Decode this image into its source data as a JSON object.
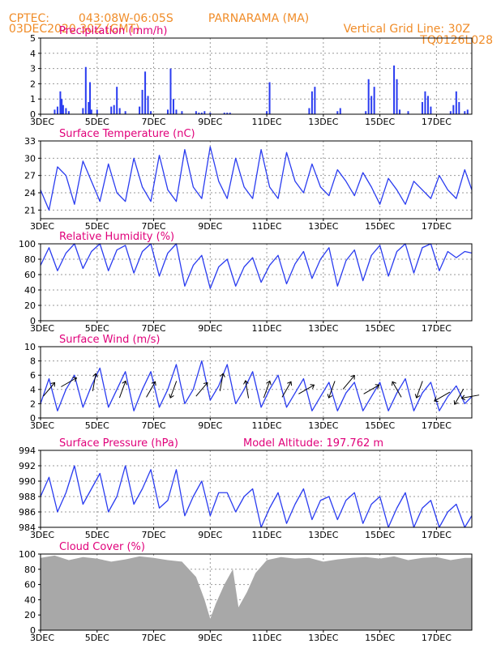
{
  "header": {
    "source": "CPTEC:",
    "coords": "043:08W-06:05S",
    "location": "PARNARAMA (MA)",
    "run": "03DEC2020 30Z (GMT)",
    "grid_note": "Vertical Grid Line: 30Z",
    "code": "TQ0126L028"
  },
  "colors": {
    "header": "#f08c28",
    "title": "#e0007a",
    "series": "#2a3cf0",
    "cloud": "#a8a8a8",
    "wind": "#000000"
  },
  "x_axis": {
    "ticks": [
      "3DEC",
      "5DEC",
      "7DEC",
      "9DEC",
      "11DEC",
      "13DEC",
      "15DEC",
      "17DEC"
    ],
    "tick_days": [
      0,
      2,
      4,
      6,
      8,
      10,
      12,
      14
    ],
    "range_days": [
      0,
      15.25
    ]
  },
  "chart_data": [
    {
      "id": "precip",
      "type": "bar",
      "title": "Precipitation (mm/h)",
      "ylim": [
        0,
        5
      ],
      "yticks": [
        0,
        1,
        2,
        3,
        4,
        5
      ],
      "x_days": [
        0.5,
        0.6,
        0.7,
        0.75,
        0.8,
        0.9,
        1.0,
        1.5,
        1.6,
        1.7,
        1.75,
        1.8,
        2.0,
        2.5,
        2.6,
        2.7,
        2.8,
        3.0,
        3.5,
        3.6,
        3.7,
        3.8,
        3.9,
        4.5,
        4.6,
        4.7,
        4.8,
        5.0,
        5.5,
        5.6,
        5.7,
        5.8,
        6.0,
        6.5,
        6.6,
        6.7,
        8.0,
        8.1,
        9.5,
        9.6,
        9.7,
        10.5,
        10.6,
        11.5,
        11.6,
        11.7,
        11.8,
        12.5,
        12.6,
        12.7,
        13.0,
        13.5,
        13.6,
        13.7,
        13.8,
        14.5,
        14.6,
        14.7,
        14.8,
        15.0,
        15.1
      ],
      "values": [
        0.3,
        0.5,
        1.5,
        1.0,
        0.6,
        0.4,
        0.2,
        0.4,
        3.1,
        0.8,
        2.1,
        0.3,
        0.3,
        0.5,
        0.6,
        1.8,
        0.4,
        0.2,
        0.5,
        1.6,
        2.8,
        1.2,
        0.2,
        0.3,
        3.0,
        1.0,
        0.3,
        0.2,
        0.2,
        0.1,
        0.1,
        0.2,
        0.1,
        0.1,
        0.1,
        0.1,
        0.2,
        2.1,
        0.4,
        1.5,
        1.8,
        0.2,
        0.4,
        0.2,
        2.3,
        1.2,
        1.8,
        3.2,
        2.3,
        0.3,
        0.2,
        0.8,
        1.5,
        1.2,
        0.5,
        0.2,
        0.6,
        1.5,
        0.8,
        0.2,
        0.3
      ],
      "bar_width_days": 0.05
    },
    {
      "id": "temp",
      "type": "line",
      "title": "Surface Temperature (nC)",
      "ylim": [
        19.5,
        33
      ],
      "yticks": [
        21,
        24,
        27,
        30,
        33
      ],
      "x_days": [
        0,
        0.3,
        0.6,
        0.9,
        1.2,
        1.5,
        1.8,
        2.1,
        2.4,
        2.7,
        3.0,
        3.3,
        3.6,
        3.9,
        4.2,
        4.5,
        4.8,
        5.1,
        5.4,
        5.7,
        6.0,
        6.3,
        6.6,
        6.9,
        7.2,
        7.5,
        7.8,
        8.1,
        8.4,
        8.7,
        9.0,
        9.3,
        9.6,
        9.9,
        10.2,
        10.5,
        10.8,
        11.1,
        11.4,
        11.7,
        12.0,
        12.3,
        12.6,
        12.9,
        13.2,
        13.5,
        13.8,
        14.1,
        14.4,
        14.7,
        15.0,
        15.25
      ],
      "values": [
        24.5,
        21,
        28.5,
        27,
        22,
        29.5,
        26,
        22.5,
        29,
        24,
        22.5,
        30,
        25,
        22.5,
        30.5,
        24.5,
        22.5,
        31.5,
        25,
        23,
        32,
        26,
        23,
        30,
        25,
        23,
        31.5,
        25,
        23,
        31,
        26,
        24,
        29,
        25,
        23.5,
        28,
        26,
        23.5,
        27.5,
        25,
        22,
        26.5,
        24.5,
        22,
        26,
        24.5,
        23,
        27,
        24.5,
        23,
        28,
        24.5
      ]
    },
    {
      "id": "rh",
      "type": "line",
      "title": "Relative Humidity (%)",
      "ylim": [
        0,
        100
      ],
      "yticks": [
        0,
        20,
        40,
        60,
        80,
        100
      ],
      "x_days": [
        0,
        0.3,
        0.6,
        0.9,
        1.2,
        1.5,
        1.8,
        2.1,
        2.4,
        2.7,
        3.0,
        3.3,
        3.6,
        3.9,
        4.2,
        4.5,
        4.8,
        5.1,
        5.4,
        5.7,
        6.0,
        6.3,
        6.6,
        6.9,
        7.2,
        7.5,
        7.8,
        8.1,
        8.4,
        8.7,
        9.0,
        9.3,
        9.6,
        9.9,
        10.2,
        10.5,
        10.8,
        11.1,
        11.4,
        11.7,
        12.0,
        12.3,
        12.6,
        12.9,
        13.2,
        13.5,
        13.8,
        14.1,
        14.4,
        14.7,
        15.0,
        15.25
      ],
      "values": [
        72,
        95,
        65,
        88,
        100,
        68,
        90,
        100,
        65,
        92,
        98,
        62,
        90,
        100,
        58,
        88,
        100,
        45,
        72,
        85,
        42,
        70,
        80,
        45,
        70,
        82,
        50,
        72,
        85,
        48,
        74,
        90,
        55,
        80,
        95,
        45,
        78,
        92,
        52,
        85,
        98,
        58,
        90,
        100,
        62,
        95,
        100,
        65,
        90,
        82,
        90,
        88
      ]
    },
    {
      "id": "wind",
      "type": "line",
      "title": "Surface Wind (m/s)",
      "ylim": [
        0,
        10
      ],
      "yticks": [
        0,
        2,
        4,
        6,
        8,
        10
      ],
      "x_days": [
        0,
        0.3,
        0.6,
        0.9,
        1.2,
        1.5,
        1.8,
        2.1,
        2.4,
        2.7,
        3.0,
        3.3,
        3.6,
        3.9,
        4.2,
        4.5,
        4.8,
        5.1,
        5.4,
        5.7,
        6.0,
        6.3,
        6.6,
        6.9,
        7.2,
        7.5,
        7.8,
        8.1,
        8.4,
        8.7,
        9.0,
        9.3,
        9.6,
        9.9,
        10.2,
        10.5,
        10.8,
        11.1,
        11.4,
        11.7,
        12.0,
        12.3,
        12.6,
        12.9,
        13.2,
        13.5,
        13.8,
        14.1,
        14.4,
        14.7,
        15.0,
        15.25
      ],
      "values": [
        2,
        5.5,
        1,
        4,
        6,
        1.5,
        4.5,
        7,
        1.5,
        4,
        6.5,
        1,
        4,
        6.5,
        1.5,
        4,
        7.5,
        2,
        4,
        8,
        2.5,
        4.5,
        7.5,
        2,
        4,
        6.5,
        1.5,
        4,
        6,
        1.5,
        3.5,
        5.5,
        1,
        3,
        5,
        1,
        3.5,
        5,
        1,
        3,
        5,
        1,
        3.5,
        5.5,
        1,
        3.5,
        5,
        1,
        3,
        4.5,
        2,
        3
      ],
      "arrows": {
        "x_days": [
          0.3,
          1.0,
          1.9,
          2.9,
          3.9,
          4.7,
          5.7,
          6.4,
          7.3,
          8.0,
          8.7,
          9.4,
          10.3,
          10.9,
          11.7,
          12.6,
          13.4,
          14.2,
          14.8,
          15.2
        ],
        "dir_deg": [
          40,
          60,
          10,
          20,
          30,
          200,
          40,
          10,
          350,
          20,
          30,
          60,
          200,
          40,
          60,
          330,
          200,
          240,
          210,
          260
        ],
        "speed": [
          3,
          4,
          4,
          3,
          3,
          3,
          3,
          4,
          3,
          3,
          3,
          3,
          3,
          4,
          3,
          3,
          3,
          2,
          2,
          2
        ]
      }
    },
    {
      "id": "pressure",
      "type": "line",
      "title": "Surface Pressure (hPa)",
      "annotation": "Model Altitude: 197.762 m",
      "ylim": [
        984,
        994
      ],
      "yticks": [
        984,
        986,
        988,
        990,
        992,
        994
      ],
      "x_days": [
        0,
        0.3,
        0.6,
        0.9,
        1.2,
        1.5,
        1.8,
        2.1,
        2.4,
        2.7,
        3.0,
        3.3,
        3.6,
        3.9,
        4.2,
        4.5,
        4.8,
        5.1,
        5.4,
        5.7,
        6.0,
        6.3,
        6.6,
        6.9,
        7.2,
        7.5,
        7.8,
        8.1,
        8.4,
        8.7,
        9.0,
        9.3,
        9.6,
        9.9,
        10.2,
        10.5,
        10.8,
        11.1,
        11.4,
        11.7,
        12.0,
        12.3,
        12.6,
        12.9,
        13.2,
        13.5,
        13.8,
        14.1,
        14.4,
        14.7,
        15.0,
        15.25
      ],
      "values": [
        988,
        990.5,
        986,
        988.5,
        992,
        987,
        989,
        991,
        986,
        988,
        992,
        987,
        989,
        991.5,
        986.5,
        987.5,
        991.5,
        985.5,
        988,
        990,
        985.5,
        988.5,
        988.5,
        986,
        988,
        989,
        984,
        986.5,
        988.5,
        984.5,
        987,
        989,
        985,
        987.5,
        988,
        985,
        987.5,
        988.5,
        984.5,
        987,
        988,
        984,
        986.5,
        988.5,
        984,
        986.5,
        987.5,
        984,
        986,
        987,
        984,
        985.5
      ]
    },
    {
      "id": "cloud",
      "type": "area",
      "title": "Cloud Cover (%)",
      "ylim": [
        0,
        100
      ],
      "yticks": [
        0,
        20,
        40,
        60,
        80,
        100
      ],
      "x_days": [
        0,
        0.5,
        1.0,
        1.5,
        2.0,
        2.5,
        3.0,
        3.5,
        4.0,
        4.5,
        5.0,
        5.5,
        5.8,
        6.0,
        6.2,
        6.5,
        6.8,
        7.0,
        7.3,
        7.6,
        8.0,
        8.5,
        9.0,
        9.5,
        10.0,
        10.5,
        11.0,
        11.5,
        12.0,
        12.5,
        13.0,
        13.5,
        14.0,
        14.5,
        15.0,
        15.25
      ],
      "values": [
        95,
        98,
        92,
        96,
        94,
        90,
        93,
        97,
        95,
        92,
        90,
        70,
        40,
        15,
        35,
        60,
        80,
        30,
        50,
        75,
        92,
        96,
        94,
        95,
        90,
        93,
        95,
        96,
        94,
        97,
        92,
        95,
        96,
        92,
        95,
        95
      ]
    }
  ]
}
